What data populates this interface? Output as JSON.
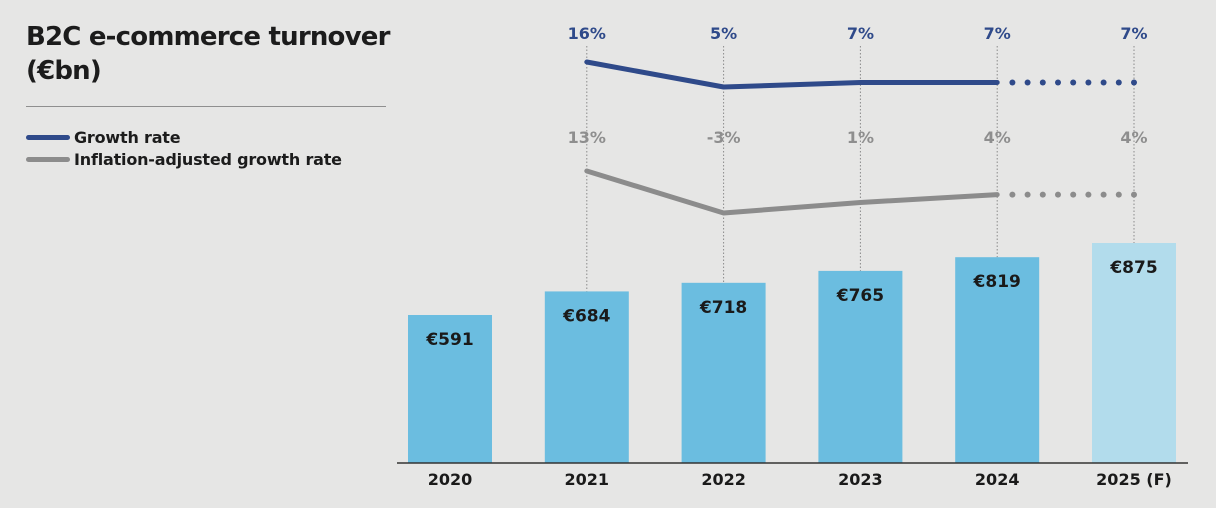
{
  "title": "B2C e-commerce turnover (€bn)",
  "legend": [
    {
      "label": "Growth rate",
      "color": "#2f4a8a"
    },
    {
      "label": "Inflation-adjusted growth rate",
      "color": "#8c8c8c"
    }
  ],
  "colors": {
    "bar": "#6bbde0",
    "bar_forecast": "#b2dcec",
    "growth_line": "#2f4a8a",
    "inflation_line": "#8c8c8c",
    "growth_label": "#2f4a8a",
    "inflation_label": "#8e8e8e",
    "guide": "#8a8a8a",
    "axis": "#333333"
  },
  "chart_data": {
    "type": "bar",
    "title": "B2C e-commerce turnover (€bn)",
    "categories": [
      "2020",
      "2021",
      "2022",
      "2023",
      "2024",
      "2025 (F)"
    ],
    "series": [
      {
        "name": "B2C e-commerce turnover (€bn)",
        "values": [
          591,
          684,
          718,
          765,
          819,
          875
        ],
        "labels": [
          "€591",
          "€684",
          "€718",
          "€765",
          "€819",
          "€875"
        ],
        "forecast_index": 5
      }
    ],
    "lines": [
      {
        "name": "Growth rate",
        "values": [
          null,
          16,
          5,
          7,
          7,
          7
        ],
        "labels": [
          "",
          "16%",
          "5%",
          "7%",
          "7%",
          "7%"
        ],
        "forecast_from_index": 4
      },
      {
        "name": "Inflation-adjusted growth rate",
        "values": [
          null,
          13,
          -3,
          1,
          4,
          4
        ],
        "labels": [
          "",
          "13%",
          "-3%",
          "1%",
          "4%",
          "4%"
        ],
        "forecast_from_index": 4
      }
    ],
    "xlabel": "",
    "ylabel": "",
    "grid": false,
    "legend_position": "top-left"
  }
}
